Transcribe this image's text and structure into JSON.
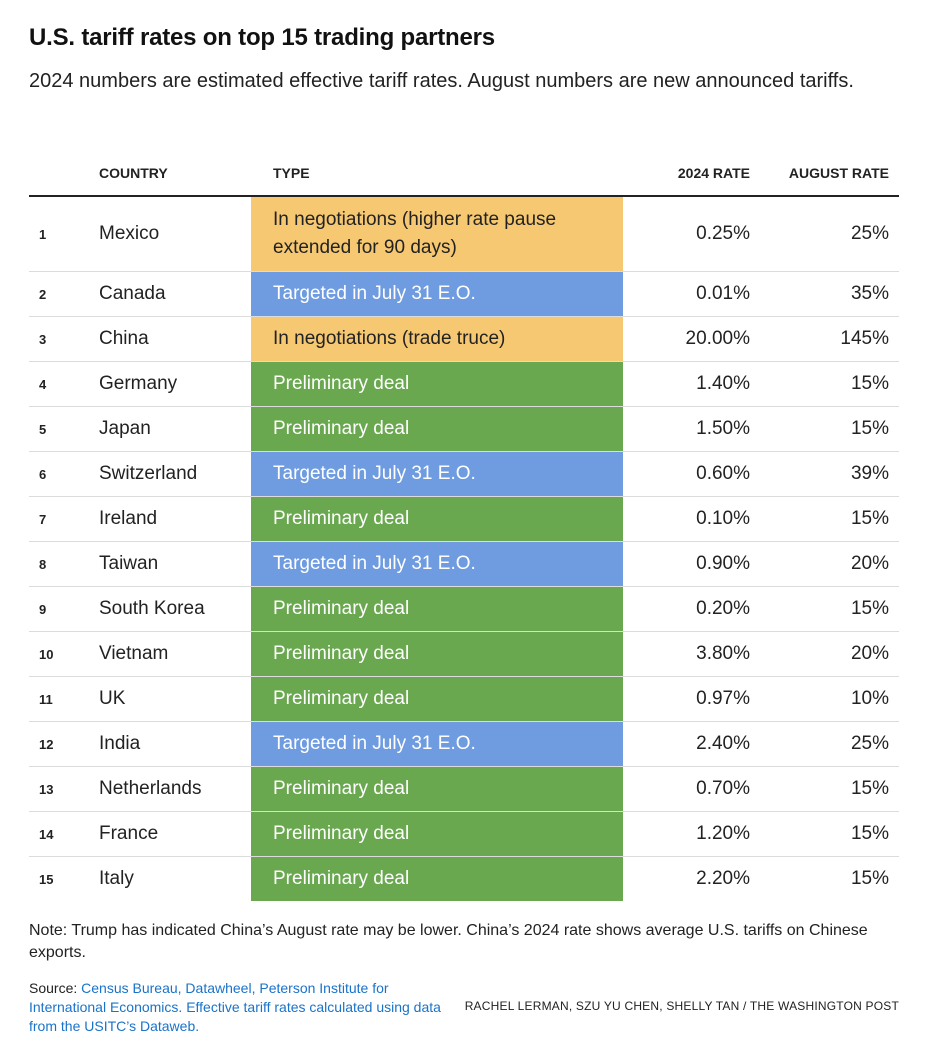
{
  "title": "U.S. tariff rates on top 15 trading partners",
  "subtitle": "2024 numbers are estimated effective tariff rates. August numbers are new announced tariffs.",
  "colors": {
    "in_negotiations": "#f7c872",
    "targeted": "#6f9ce0",
    "preliminary": "#69a84f",
    "link": "#1a73c9"
  },
  "chart_data": {
    "type": "table",
    "columns": [
      "",
      "COUNTRY",
      "TYPE",
      "2024 RATE",
      "AUGUST RATE"
    ],
    "rows": [
      {
        "rank": "1",
        "country": "Mexico",
        "type": "In negotiations (higher rate pause extended for 90 days)",
        "category": "in_negotiations",
        "rate_2024": "0.25%",
        "rate_august": "25%"
      },
      {
        "rank": "2",
        "country": "Canada",
        "type": "Targeted in July 31 E.O.",
        "category": "targeted",
        "rate_2024": "0.01%",
        "rate_august": "35%"
      },
      {
        "rank": "3",
        "country": "China",
        "type": "In negotiations (trade truce)",
        "category": "in_negotiations",
        "rate_2024": "20.00%",
        "rate_august": "145%"
      },
      {
        "rank": "4",
        "country": "Germany",
        "type": "Preliminary deal",
        "category": "preliminary",
        "rate_2024": "1.40%",
        "rate_august": "15%"
      },
      {
        "rank": "5",
        "country": "Japan",
        "type": "Preliminary deal",
        "category": "preliminary",
        "rate_2024": "1.50%",
        "rate_august": "15%"
      },
      {
        "rank": "6",
        "country": "Switzerland",
        "type": "Targeted in July 31 E.O.",
        "category": "targeted",
        "rate_2024": "0.60%",
        "rate_august": "39%"
      },
      {
        "rank": "7",
        "country": "Ireland",
        "type": "Preliminary deal",
        "category": "preliminary",
        "rate_2024": "0.10%",
        "rate_august": "15%"
      },
      {
        "rank": "8",
        "country": "Taiwan",
        "type": "Targeted in July 31 E.O.",
        "category": "targeted",
        "rate_2024": "0.90%",
        "rate_august": "20%"
      },
      {
        "rank": "9",
        "country": "South Korea",
        "type": "Preliminary deal",
        "category": "preliminary",
        "rate_2024": "0.20%",
        "rate_august": "15%"
      },
      {
        "rank": "10",
        "country": "Vietnam",
        "type": "Preliminary deal",
        "category": "preliminary",
        "rate_2024": "3.80%",
        "rate_august": "20%"
      },
      {
        "rank": "11",
        "country": "UK",
        "type": "Preliminary deal",
        "category": "preliminary",
        "rate_2024": "0.97%",
        "rate_august": "10%"
      },
      {
        "rank": "12",
        "country": "India",
        "type": "Targeted in July 31 E.O.",
        "category": "targeted",
        "rate_2024": "2.40%",
        "rate_august": "25%"
      },
      {
        "rank": "13",
        "country": "Netherlands",
        "type": "Preliminary deal",
        "category": "preliminary",
        "rate_2024": "0.70%",
        "rate_august": "15%"
      },
      {
        "rank": "14",
        "country": "France",
        "type": "Preliminary deal",
        "category": "preliminary",
        "rate_2024": "1.20%",
        "rate_august": "15%"
      },
      {
        "rank": "15",
        "country": "Italy",
        "type": "Preliminary deal",
        "category": "preliminary",
        "rate_2024": "2.20%",
        "rate_august": "15%"
      }
    ]
  },
  "note": "Note: Trump has indicated China’s August rate may be lower. China’s 2024 rate shows average U.S. tariffs on Chinese exports.",
  "source": {
    "label": "Source: ",
    "text": "Census Bureau, Datawheel, Peterson Institute for International Economics. Effective tariff rates calculated using data from the USITC’s Dataweb."
  },
  "credit": "RACHEL LERMAN, SZU YU CHEN, SHELLY TAN / THE WASHINGTON POST"
}
